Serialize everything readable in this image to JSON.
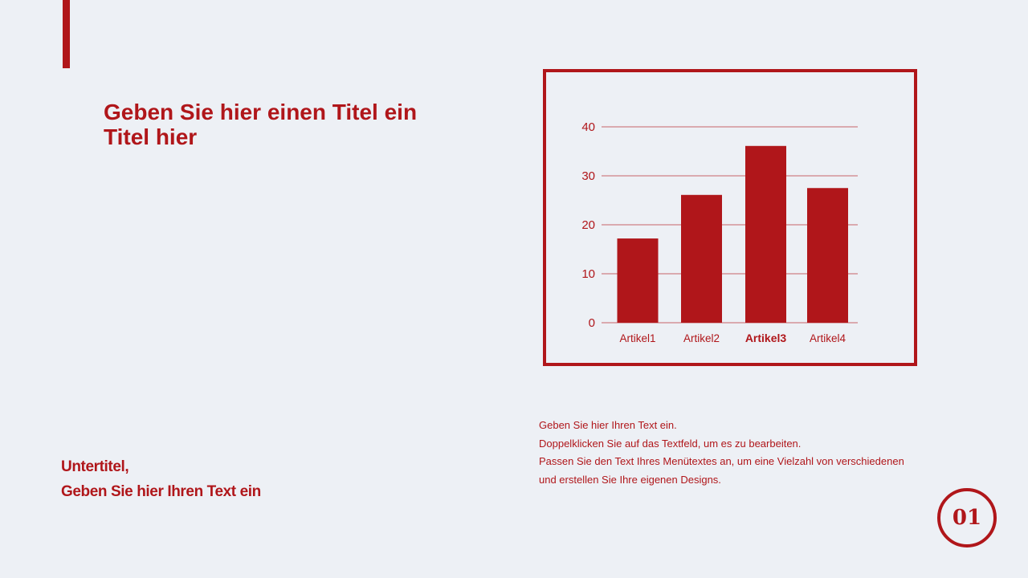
{
  "slide": {
    "title_lines": [
      "Geben Sie hier einen Titel ein",
      "Titel hier"
    ],
    "subtitle_lines": [
      "Untertitel,",
      "Geben Sie hier Ihren Text ein"
    ],
    "body_lines": [
      "Geben Sie hier Ihren Text ein.",
      "Doppelklicken Sie auf das Textfeld, um es zu bearbeiten.",
      "Passen Sie den Text Ihres Menütextes an, um eine Vielzahl von verschiedenen",
      "und erstellen Sie Ihre eigenen Designs."
    ],
    "page_number": "01",
    "accent_color": "#b0161a"
  },
  "chart_data": {
    "type": "bar",
    "categories": [
      "Artikel1",
      "Artikel2",
      "Artikel3",
      "Artikel4"
    ],
    "values": [
      17.2,
      26.1,
      36.1,
      27.5
    ],
    "highlighted_category": "Artikel3",
    "yticks": [
      "0",
      "10",
      "20",
      "30",
      "40"
    ],
    "ylim": [
      0,
      40
    ],
    "grid": true,
    "bar_color": "#b0161a"
  }
}
